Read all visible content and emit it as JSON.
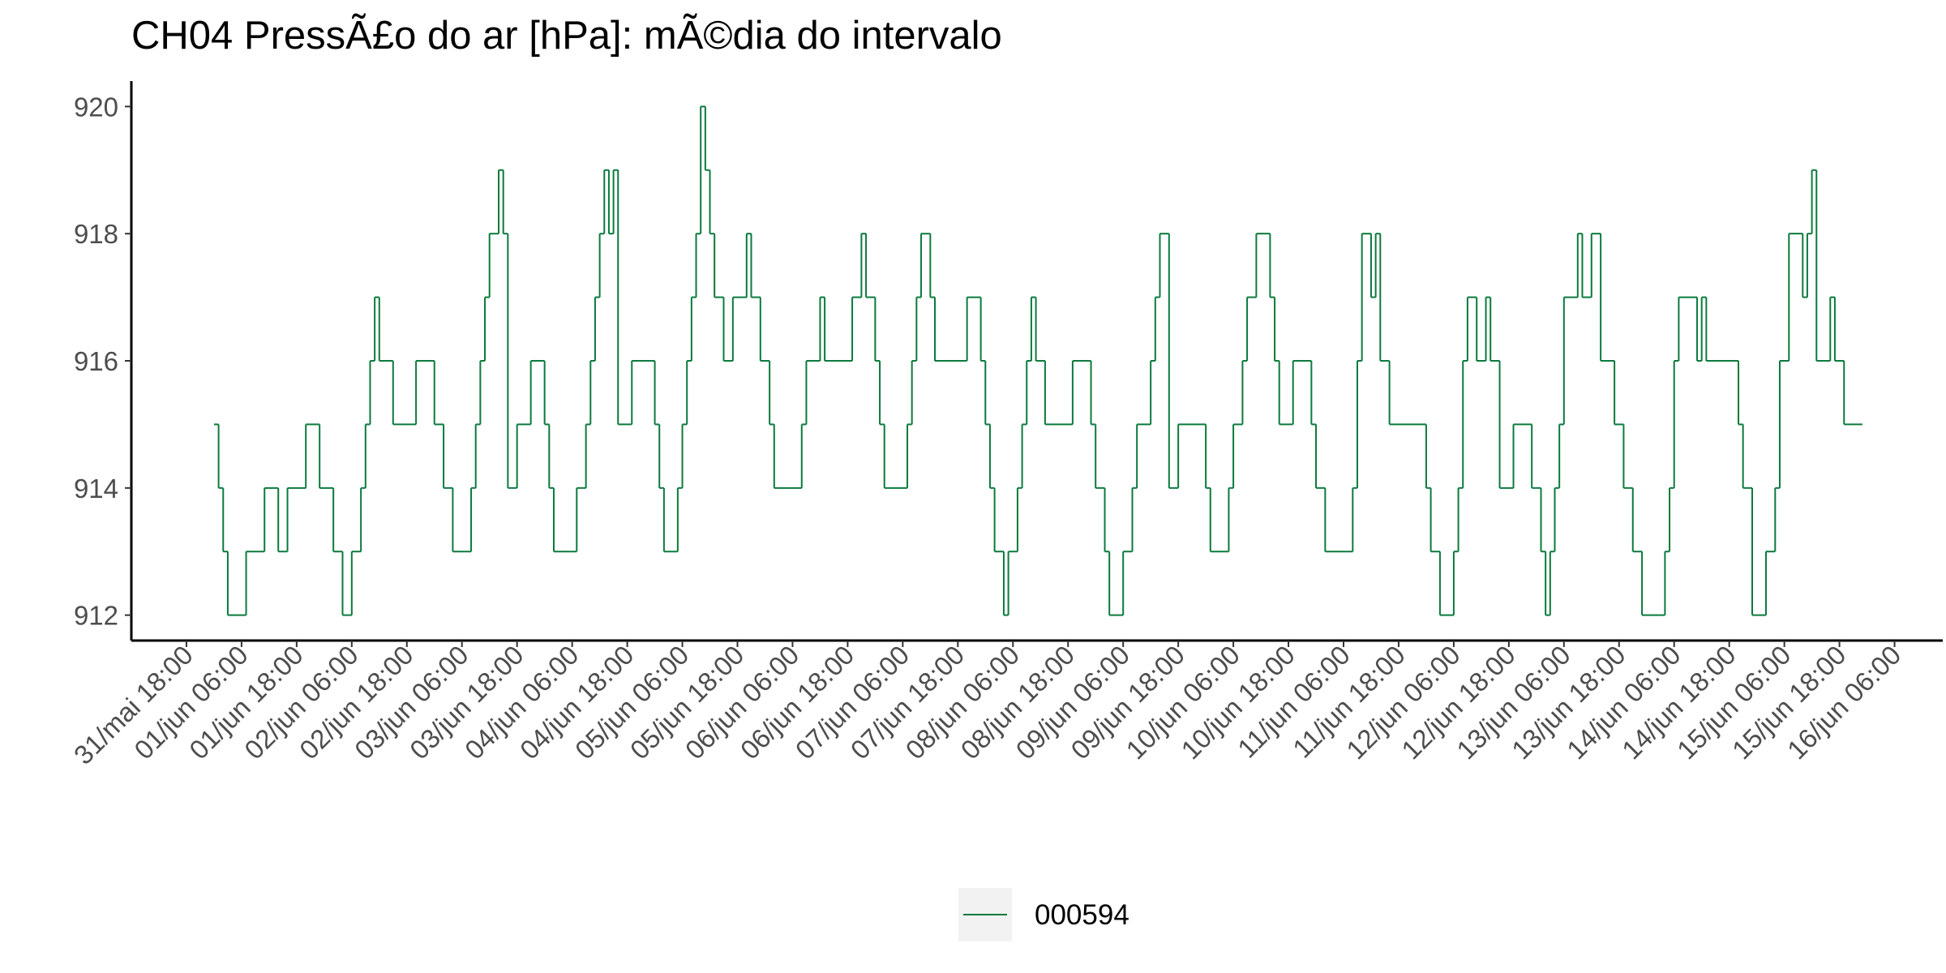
{
  "chart_data": {
    "type": "step",
    "title": "CH04 PressÃ£o do ar [hPa]: mÃ©dia do intervalo",
    "series": [
      {
        "name": "000594",
        "color": "#0b7a3d",
        "x": [
          "01/jun 00:00",
          "01/jun 01:00",
          "01/jun 02:00",
          "01/jun 03:00",
          "01/jun 07:00",
          "01/jun 11:00",
          "01/jun 14:00",
          "01/jun 16:00",
          "01/jun 20:00",
          "01/jun 23:00",
          "02/jun 02:00",
          "02/jun 04:00",
          "02/jun 06:00",
          "02/jun 08:00",
          "02/jun 09:00",
          "02/jun 10:00",
          "02/jun 11:00",
          "02/jun 12:00",
          "02/jun 15:00",
          "02/jun 20:00",
          "03/jun 00:00",
          "03/jun 02:00",
          "03/jun 04:00",
          "03/jun 08:00",
          "03/jun 09:00",
          "03/jun 10:00",
          "03/jun 11:00",
          "03/jun 12:00",
          "03/jun 14:00",
          "03/jun 15:00",
          "03/jun 16:00",
          "03/jun 18:00",
          "03/jun 21:00",
          "04/jun 00:00",
          "04/jun 01:00",
          "04/jun 02:00",
          "04/jun 07:00",
          "04/jun 09:00",
          "04/jun 10:00",
          "04/jun 11:00",
          "04/jun 12:00",
          "04/jun 13:00",
          "04/jun 14:00",
          "04/jun 15:00",
          "04/jun 16:00",
          "04/jun 19:00",
          "05/jun 00:00",
          "05/jun 01:00",
          "05/jun 02:00",
          "05/jun 05:00",
          "05/jun 06:00",
          "05/jun 07:00",
          "05/jun 08:00",
          "05/jun 09:00",
          "05/jun 10:00",
          "05/jun 11:00",
          "05/jun 12:00",
          "05/jun 13:00",
          "05/jun 15:00",
          "05/jun 17:00",
          "05/jun 20:00",
          "05/jun 21:00",
          "05/jun 23:00",
          "06/jun 01:00",
          "06/jun 02:00",
          "06/jun 08:00",
          "06/jun 09:00",
          "06/jun 12:00",
          "06/jun 13:00",
          "06/jun 19:00",
          "06/jun 21:00",
          "06/jun 22:00",
          "07/jun 00:00",
          "07/jun 01:00",
          "07/jun 02:00",
          "07/jun 07:00",
          "07/jun 08:00",
          "07/jun 09:00",
          "07/jun 10:00",
          "07/jun 12:00",
          "07/jun 13:00",
          "07/jun 20:00",
          "07/jun 23:00",
          "08/jun 00:00",
          "08/jun 01:00",
          "08/jun 02:00",
          "08/jun 04:00",
          "08/jun 05:00",
          "08/jun 07:00",
          "08/jun 08:00",
          "08/jun 09:00",
          "08/jun 10:00",
          "08/jun 11:00",
          "08/jun 13:00",
          "08/jun 19:00",
          "08/jun 23:00",
          "09/jun 00:00",
          "09/jun 02:00",
          "09/jun 03:00",
          "09/jun 06:00",
          "09/jun 08:00",
          "09/jun 09:00",
          "09/jun 12:00",
          "09/jun 13:00",
          "09/jun 14:00",
          "09/jun 16:00",
          "09/jun 18:00",
          "10/jun 00:00",
          "10/jun 01:00",
          "10/jun 05:00",
          "10/jun 06:00",
          "10/jun 08:00",
          "10/jun 09:00",
          "10/jun 11:00",
          "10/jun 14:00",
          "10/jun 15:00",
          "10/jun 16:00",
          "10/jun 19:00",
          "10/jun 23:00",
          "11/jun 00:00",
          "11/jun 02:00",
          "11/jun 08:00",
          "11/jun 09:00",
          "11/jun 10:00",
          "11/jun 12:00",
          "11/jun 13:00",
          "11/jun 14:00",
          "11/jun 16:00",
          "12/jun 00:00",
          "12/jun 01:00",
          "12/jun 03:00",
          "12/jun 06:00",
          "12/jun 07:00",
          "12/jun 08:00",
          "12/jun 09:00",
          "12/jun 11:00",
          "12/jun 13:00",
          "12/jun 14:00",
          "12/jun 16:00",
          "12/jun 19:00",
          "12/jun 23:00",
          "13/jun 01:00",
          "13/jun 02:00",
          "13/jun 03:00",
          "13/jun 04:00",
          "13/jun 05:00",
          "13/jun 06:00",
          "13/jun 09:00",
          "13/jun 10:00",
          "13/jun 12:00",
          "13/jun 14:00",
          "13/jun 17:00",
          "13/jun 19:00",
          "13/jun 21:00",
          "13/jun 23:00",
          "14/jun 04:00",
          "14/jun 05:00",
          "14/jun 06:00",
          "14/jun 07:00",
          "14/jun 11:00",
          "14/jun 12:00",
          "14/jun 13:00",
          "14/jun 20:00",
          "14/jun 21:00",
          "14/jun 23:00",
          "15/jun 02:00",
          "15/jun 04:00",
          "15/jun 05:00",
          "15/jun 07:00",
          "15/jun 10:00",
          "15/jun 11:00",
          "15/jun 12:00",
          "15/jun 13:00",
          "15/jun 16:00",
          "15/jun 17:00",
          "15/jun 19:00",
          "15/jun 23:00"
        ],
        "values": [
          915,
          914,
          913,
          912,
          913,
          914,
          913,
          914,
          915,
          914,
          913,
          912,
          913,
          914,
          915,
          916,
          917,
          916,
          915,
          916,
          915,
          914,
          913,
          914,
          915,
          916,
          917,
          918,
          919,
          918,
          914,
          915,
          916,
          915,
          914,
          913,
          914,
          915,
          916,
          917,
          918,
          919,
          918,
          919,
          915,
          916,
          915,
          914,
          913,
          914,
          915,
          916,
          917,
          918,
          920,
          919,
          918,
          917,
          916,
          917,
          918,
          917,
          916,
          915,
          914,
          915,
          916,
          917,
          916,
          917,
          918,
          917,
          916,
          915,
          914,
          915,
          916,
          917,
          918,
          917,
          916,
          917,
          916,
          915,
          914,
          913,
          912,
          913,
          914,
          915,
          916,
          917,
          916,
          915,
          916,
          915,
          914,
          913,
          912,
          913,
          914,
          915,
          916,
          917,
          918,
          914,
          915,
          914,
          913,
          914,
          915,
          916,
          917,
          918,
          917,
          916,
          915,
          916,
          915,
          914,
          913,
          914,
          916,
          918,
          917,
          918,
          916,
          915,
          914,
          913,
          912,
          913,
          914,
          916,
          917,
          916,
          917,
          916,
          914,
          915,
          914,
          913,
          912,
          913,
          914,
          915,
          917,
          918,
          917,
          918,
          916,
          915,
          914,
          913,
          912,
          913,
          914,
          916,
          917,
          916,
          917,
          916,
          915,
          914,
          912,
          913,
          914,
          916,
          918,
          917,
          918,
          919,
          916,
          917,
          916,
          915,
          915
        ]
      }
    ],
    "xlim": [
      "31/mai 06:00",
      "16/jun 16:30"
    ],
    "xticks": [
      "31/mai 18:00",
      "01/jun 06:00",
      "01/jun 18:00",
      "02/jun 06:00",
      "02/jun 18:00",
      "03/jun 06:00",
      "03/jun 18:00",
      "04/jun 06:00",
      "04/jun 18:00",
      "05/jun 06:00",
      "05/jun 18:00",
      "06/jun 06:00",
      "06/jun 18:00",
      "07/jun 06:00",
      "07/jun 18:00",
      "08/jun 06:00",
      "08/jun 18:00",
      "09/jun 06:00",
      "09/jun 18:00",
      "10/jun 06:00",
      "10/jun 18:00",
      "11/jun 06:00",
      "11/jun 18:00",
      "12/jun 06:00",
      "12/jun 18:00",
      "13/jun 06:00",
      "13/jun 18:00",
      "14/jun 06:00",
      "14/jun 18:00",
      "15/jun 06:00",
      "15/jun 18:00",
      "16/jun 06:00"
    ],
    "ylim": [
      911.6,
      920.4
    ],
    "yticks": [
      912,
      914,
      916,
      918,
      920
    ],
    "grid": false,
    "legend": "bottom"
  }
}
